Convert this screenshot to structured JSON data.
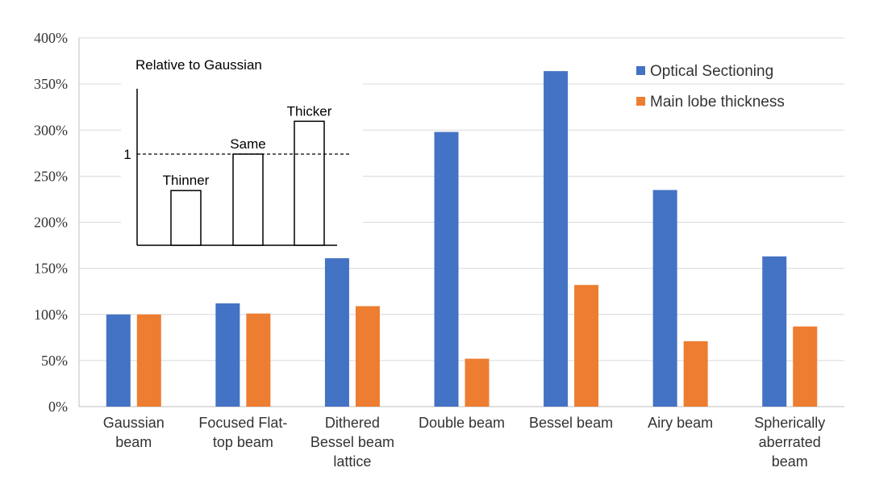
{
  "chart_data": {
    "type": "bar",
    "title": "",
    "xlabel": "",
    "ylabel": "",
    "ylim": [
      0,
      400
    ],
    "yticks": [
      "0%",
      "50%",
      "100%",
      "150%",
      "200%",
      "250%",
      "300%",
      "350%",
      "400%"
    ],
    "grid": true,
    "legend_position": "top-right",
    "categories": [
      [
        "Gaussian",
        "beam"
      ],
      [
        "Focused Flat-",
        "top beam"
      ],
      [
        "Dithered",
        "Bessel beam",
        "lattice"
      ],
      [
        "Double beam"
      ],
      [
        "Bessel beam"
      ],
      [
        "Airy beam"
      ],
      [
        "Spherically",
        "aberrated",
        "beam"
      ]
    ],
    "series": [
      {
        "name": "Optical Sectioning",
        "color": "#4472C4",
        "values": [
          100,
          112,
          161,
          298,
          364,
          235,
          163
        ]
      },
      {
        "name": "Main lobe thickness",
        "color": "#ED7D31",
        "values": [
          100,
          101,
          109,
          52,
          132,
          71,
          87
        ]
      }
    ],
    "inset": {
      "title": "Relative to Gaussian",
      "reference_label": "1",
      "bars": [
        {
          "label": "Thinner",
          "relative": 0.6
        },
        {
          "label": "Same",
          "relative": 1.0
        },
        {
          "label": "Thicker",
          "relative": 1.36
        }
      ]
    }
  }
}
